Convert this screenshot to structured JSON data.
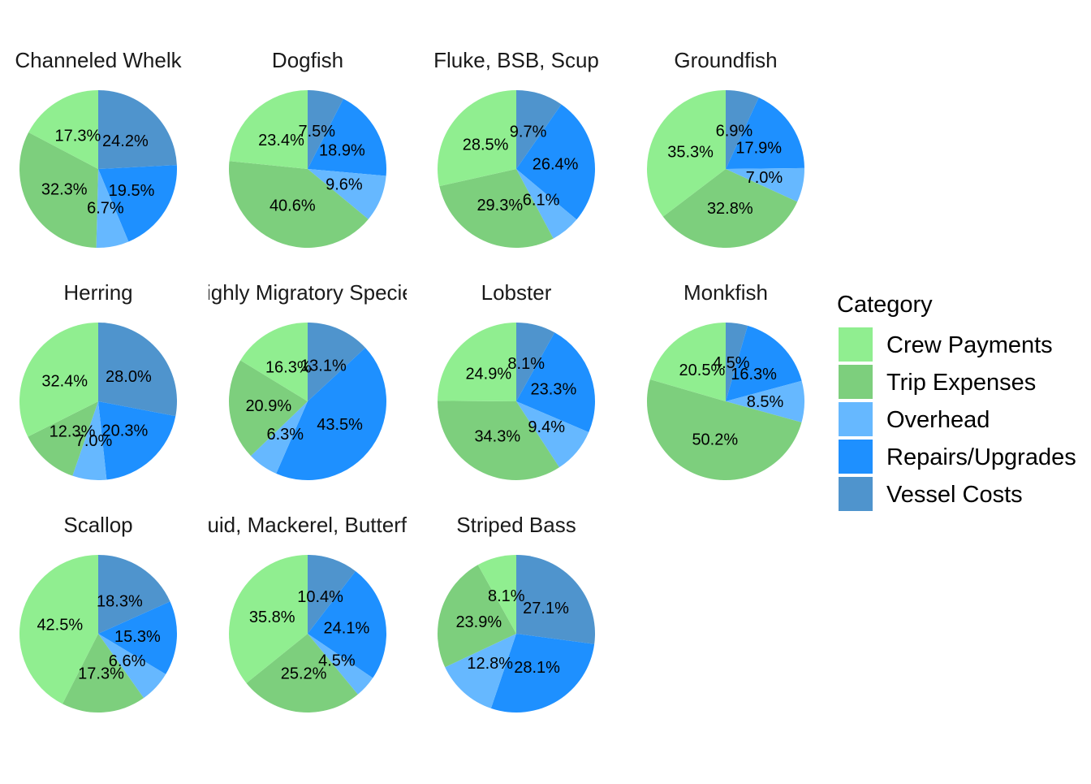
{
  "chart_data": {
    "type": "pie",
    "legend": {
      "title": "Category",
      "position": "right",
      "items": [
        {
          "label": "Crew Payments",
          "color": "#90EE90"
        },
        {
          "label": "Trip Expenses",
          "color": "#7DCF7D"
        },
        {
          "label": "Overhead",
          "color": "#66B8FF"
        },
        {
          "label": "Repairs/Upgrades",
          "color": "#1E90FF"
        },
        {
          "label": "Vessel Costs",
          "color": "#4F94CD"
        }
      ]
    },
    "category_order": [
      "Vessel Costs",
      "Repairs/Upgrades",
      "Overhead",
      "Trip Expenses",
      "Crew Payments"
    ],
    "facets": [
      {
        "title": "Channeled Whelk",
        "values": {
          "Crew Payments": 17.3,
          "Trip Expenses": 32.3,
          "Overhead": 6.7,
          "Repairs/Upgrades": 19.5,
          "Vessel Costs": 24.2
        },
        "labels": {
          "Crew Payments": "17.3%",
          "Trip Expenses": "32.3%",
          "Overhead": "6.7%",
          "Repairs/Upgrades": "19.5%",
          "Vessel Costs": "24.2%"
        }
      },
      {
        "title": "Dogfish",
        "values": {
          "Crew Payments": 23.4,
          "Trip Expenses": 40.6,
          "Overhead": 9.6,
          "Repairs/Upgrades": 18.9,
          "Vessel Costs": 7.5
        },
        "labels": {
          "Crew Payments": "23.4%",
          "Trip Expenses": "40.6%",
          "Overhead": "9.6%",
          "Repairs/Upgrades": "18.9%",
          "Vessel Costs": "7.5%"
        }
      },
      {
        "title": "Fluke, BSB, Scup",
        "values": {
          "Crew Payments": 28.5,
          "Trip Expenses": 29.3,
          "Overhead": 6.1,
          "Repairs/Upgrades": 26.4,
          "Vessel Costs": 9.7
        },
        "labels": {
          "Crew Payments": "28.5%",
          "Trip Expenses": "29.3%",
          "Overhead": "6.1%",
          "Repairs/Upgrades": "26.4%",
          "Vessel Costs": "9.7%"
        }
      },
      {
        "title": "Groundfish",
        "values": {
          "Crew Payments": 35.3,
          "Trip Expenses": 32.8,
          "Overhead": 7.0,
          "Repairs/Upgrades": 17.9,
          "Vessel Costs": 6.9
        },
        "labels": {
          "Crew Payments": "35.3%",
          "Trip Expenses": "32.8%",
          "Overhead": "7.0%",
          "Repairs/Upgrades": "17.9%",
          "Vessel Costs": "6.9%"
        }
      },
      {
        "title": "Herring",
        "values": {
          "Crew Payments": 32.4,
          "Trip Expenses": 12.3,
          "Overhead": 7.0,
          "Repairs/Upgrades": 20.3,
          "Vessel Costs": 28.0
        },
        "labels": {
          "Crew Payments": "32.4%",
          "Trip Expenses": "12.3%",
          "Overhead": "7.0%",
          "Repairs/Upgrades": "20.3%",
          "Vessel Costs": "28.0%"
        }
      },
      {
        "title": "Highly Migratory Species",
        "values": {
          "Crew Payments": 16.3,
          "Trip Expenses": 20.9,
          "Overhead": 6.3,
          "Repairs/Upgrades": 43.5,
          "Vessel Costs": 13.1
        },
        "labels": {
          "Crew Payments": "16.3%",
          "Trip Expenses": "20.9%",
          "Overhead": "6.3%",
          "Repairs/Upgrades": "43.5%",
          "Vessel Costs": "13.1%"
        }
      },
      {
        "title": "Lobster",
        "values": {
          "Crew Payments": 24.9,
          "Trip Expenses": 34.3,
          "Overhead": 9.4,
          "Repairs/Upgrades": 23.3,
          "Vessel Costs": 8.1
        },
        "labels": {
          "Crew Payments": "24.9%",
          "Trip Expenses": "34.3%",
          "Overhead": "9.4%",
          "Repairs/Upgrades": "23.3%",
          "Vessel Costs": "8.1%"
        }
      },
      {
        "title": "Monkfish",
        "values": {
          "Crew Payments": 20.5,
          "Trip Expenses": 50.2,
          "Overhead": 8.5,
          "Repairs/Upgrades": 16.3,
          "Vessel Costs": 4.5
        },
        "labels": {
          "Crew Payments": "20.5%",
          "Trip Expenses": "50.2%",
          "Overhead": "8.5%",
          "Repairs/Upgrades": "16.3%",
          "Vessel Costs": "4.5%"
        }
      },
      {
        "title": "Scallop",
        "values": {
          "Crew Payments": 42.5,
          "Trip Expenses": 17.3,
          "Overhead": 6.6,
          "Repairs/Upgrades": 15.3,
          "Vessel Costs": 18.3
        },
        "labels": {
          "Crew Payments": "42.5%",
          "Trip Expenses": "17.3%",
          "Overhead": "6.6%",
          "Repairs/Upgrades": "15.3%",
          "Vessel Costs": "18.3%"
        }
      },
      {
        "title": "Squid, Mackerel, Butterfish",
        "values": {
          "Crew Payments": 35.8,
          "Trip Expenses": 25.2,
          "Overhead": 4.5,
          "Repairs/Upgrades": 24.1,
          "Vessel Costs": 10.4
        },
        "labels": {
          "Crew Payments": "35.8%",
          "Trip Expenses": "25.2%",
          "Overhead": "4.5%",
          "Repairs/Upgrades": "24.1%",
          "Vessel Costs": "10.4%"
        }
      },
      {
        "title": "Striped Bass",
        "values": {
          "Crew Payments": 8.1,
          "Trip Expenses": 23.9,
          "Overhead": 12.8,
          "Repairs/Upgrades": 28.1,
          "Vessel Costs": 27.1
        },
        "labels": {
          "Crew Payments": "8.1%",
          "Trip Expenses": "23.9%",
          "Overhead": "12.8%",
          "Repairs/Upgrades": "28.1%",
          "Vessel Costs": "27.1%"
        }
      }
    ]
  }
}
